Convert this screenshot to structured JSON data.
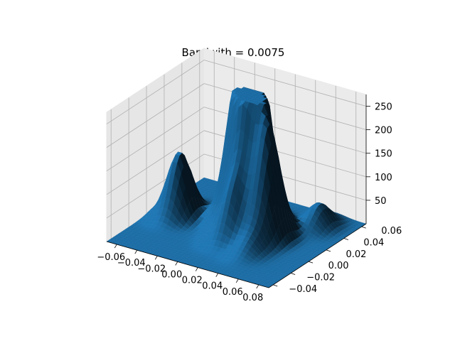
{
  "chart_data": {
    "type": "surface3d",
    "title": "Bandwith = 0.0075",
    "xlabel": "",
    "ylabel": "",
    "zlabel": "",
    "xlim": [
      -0.07,
      0.09
    ],
    "ylim": [
      -0.045,
      0.065
    ],
    "zlim": [
      0,
      275
    ],
    "x_ticks": [
      "−0.06",
      "−0.04",
      "−0.02",
      "0.00",
      "0.02",
      "0.04",
      "0.06",
      "0.08"
    ],
    "y_ticks": [
      "−0.04",
      "−0.02",
      "0.00",
      "0.02",
      "0.04",
      "0.06"
    ],
    "z_ticks": [
      "50",
      "100",
      "150",
      "200",
      "250"
    ],
    "x_tick_values": [
      -0.06,
      -0.04,
      -0.02,
      0.0,
      0.02,
      0.04,
      0.06,
      0.08
    ],
    "y_tick_values": [
      -0.04,
      -0.02,
      0.0,
      0.02,
      0.04,
      0.06
    ],
    "z_tick_values": [
      50,
      100,
      150,
      200,
      250
    ],
    "surface_color": "#1f77b4",
    "grid": true,
    "peaks": [
      {
        "x": 0.02,
        "y": 0.025,
        "z": 270
      },
      {
        "x": -0.005,
        "y": 0.028,
        "z": 225
      },
      {
        "x": 0.008,
        "y": 0.022,
        "z": 225
      },
      {
        "x": 0.038,
        "y": 0.014,
        "z": 212
      },
      {
        "x": 0.015,
        "y": 0.0,
        "z": 110
      },
      {
        "x": -0.048,
        "y": 0.012,
        "z": 135
      },
      {
        "x": 0.06,
        "y": 0.045,
        "z": 50
      },
      {
        "x": 0.04,
        "y": -0.01,
        "z": 30
      }
    ]
  }
}
